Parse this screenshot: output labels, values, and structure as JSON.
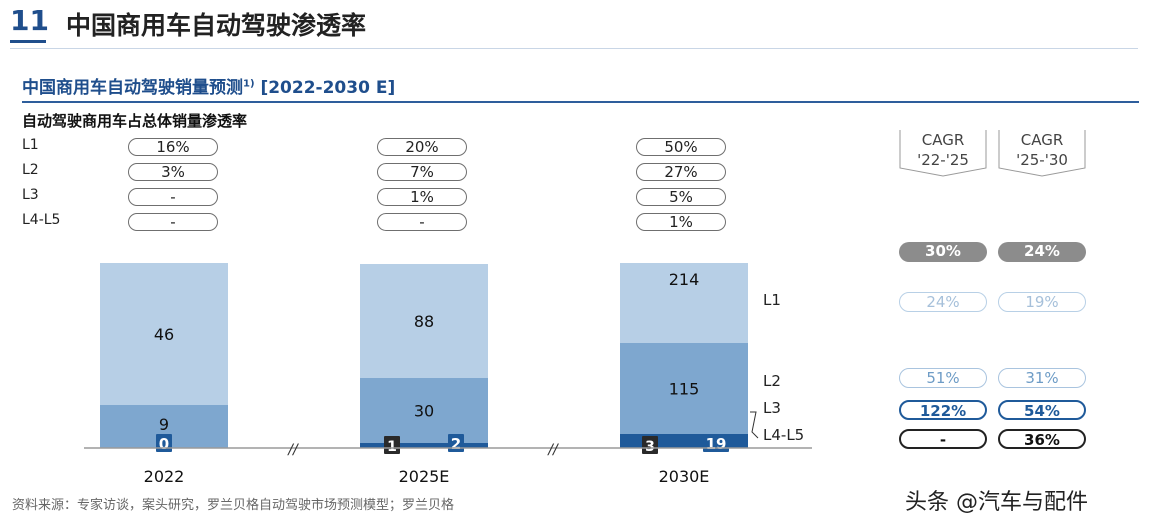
{
  "slide": {
    "number": "11",
    "title": "中国商用车自动驾驶渗透率"
  },
  "chart_title": "中国商用车自动驾驶销量预测",
  "chart_title_sup": "1)",
  "chart_title_range": "[2022-2030 E]",
  "penetration_title": "自动驾驶商用车占总体销量渗透率",
  "levels": [
    "L1",
    "L2",
    "L3",
    "L4-L5"
  ],
  "penetration": [
    {
      "year": "2022",
      "values": [
        "16%",
        "3%",
        "-",
        "-"
      ]
    },
    {
      "year": "2025E",
      "values": [
        "20%",
        "7%",
        "1%",
        "-"
      ]
    },
    {
      "year": "2030E",
      "values": [
        "50%",
        "27%",
        "5%",
        "1%"
      ]
    }
  ],
  "cagr": {
    "headers": [
      {
        "line1": "CAGR",
        "line2": "'22-'25"
      },
      {
        "line1": "CAGR",
        "line2": "'25-'30"
      }
    ],
    "total": [
      "30%",
      "24%"
    ],
    "rows": [
      {
        "level": "L1",
        "values": [
          "24%",
          "19%"
        ]
      },
      {
        "level": "L2",
        "values": [
          "51%",
          "31%"
        ]
      },
      {
        "level": "L3",
        "values": [
          "122%",
          "54%"
        ]
      },
      {
        "level": "L4-L5",
        "values": [
          "-",
          "36%"
        ]
      }
    ]
  },
  "series_labels": [
    "L1",
    "L2",
    "L3",
    "L4-L5"
  ],
  "colors": {
    "L1": "#b7cfe6",
    "L2": "#7ea7cf",
    "L3": "#1f5a9a",
    "L4-L5": "#2a2a2a",
    "accent": "#1f4e8c"
  },
  "chart_data": {
    "type": "bar",
    "stacked": true,
    "title": "中国商用车自动驾驶销量预测 [2022-2030 E]",
    "categories": [
      "2022",
      "2025E",
      "2030E"
    ],
    "series": [
      {
        "name": "L4-L5",
        "values": [
          null,
          1,
          3
        ],
        "labels": [
          "",
          "1",
          "3"
        ]
      },
      {
        "name": "L3",
        "values": [
          0,
          2,
          19
        ],
        "labels": [
          "0",
          "2",
          "19"
        ]
      },
      {
        "name": "L2",
        "values": [
          9,
          30,
          115
        ],
        "labels": [
          "9",
          "30",
          "115"
        ]
      },
      {
        "name": "L1",
        "values": [
          46,
          88,
          214
        ],
        "labels": [
          "46",
          "88",
          "214"
        ]
      }
    ],
    "xlabel": "",
    "ylabel": "",
    "axis_break_symbol": "//"
  },
  "source": "资料来源：专家访谈，案头研究，罗兰贝格自动驾驶市场预测模型；罗兰贝格",
  "watermark": "头条 @汽车与配件"
}
